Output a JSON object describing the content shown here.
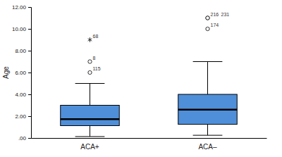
{
  "chart_data": {
    "type": "box",
    "y_label": "Age",
    "categories": [
      "ACA+",
      "ACA–"
    ],
    "color": "#4f8fd9",
    "ylim": [
      0,
      12
    ],
    "yticks": [
      {
        "value": 0,
        "label": ".00"
      },
      {
        "value": 2,
        "label": "2.00"
      },
      {
        "value": 4,
        "label": "4.00"
      },
      {
        "value": 6,
        "label": "6.00"
      },
      {
        "value": 8,
        "label": "8.00"
      },
      {
        "value": 10,
        "label": "10.00"
      },
      {
        "value": 12,
        "label": "12.00"
      }
    ],
    "grid": false,
    "boxes": [
      {
        "whisker_low": 0.13,
        "q1": 1.13,
        "median": 1.72,
        "q3": 3.0,
        "whisker_high": 5.0,
        "outliers": [
          {
            "value": 9.0,
            "label": "68",
            "marker": "star"
          },
          {
            "value": 7.0,
            "label": "8",
            "marker": "circle"
          },
          {
            "value": 6.0,
            "label": "115",
            "marker": "circle"
          }
        ]
      },
      {
        "whisker_low": 0.25,
        "q1": 1.25,
        "median": 2.6,
        "q3": 4.0,
        "whisker_high": 7.0,
        "outliers": [
          {
            "value": 11.0,
            "label": "216",
            "marker": "circle"
          },
          {
            "value": 11.0,
            "label": "231",
            "marker": "circle"
          },
          {
            "value": 10.0,
            "label": "174",
            "marker": "circle"
          }
        ]
      }
    ]
  }
}
